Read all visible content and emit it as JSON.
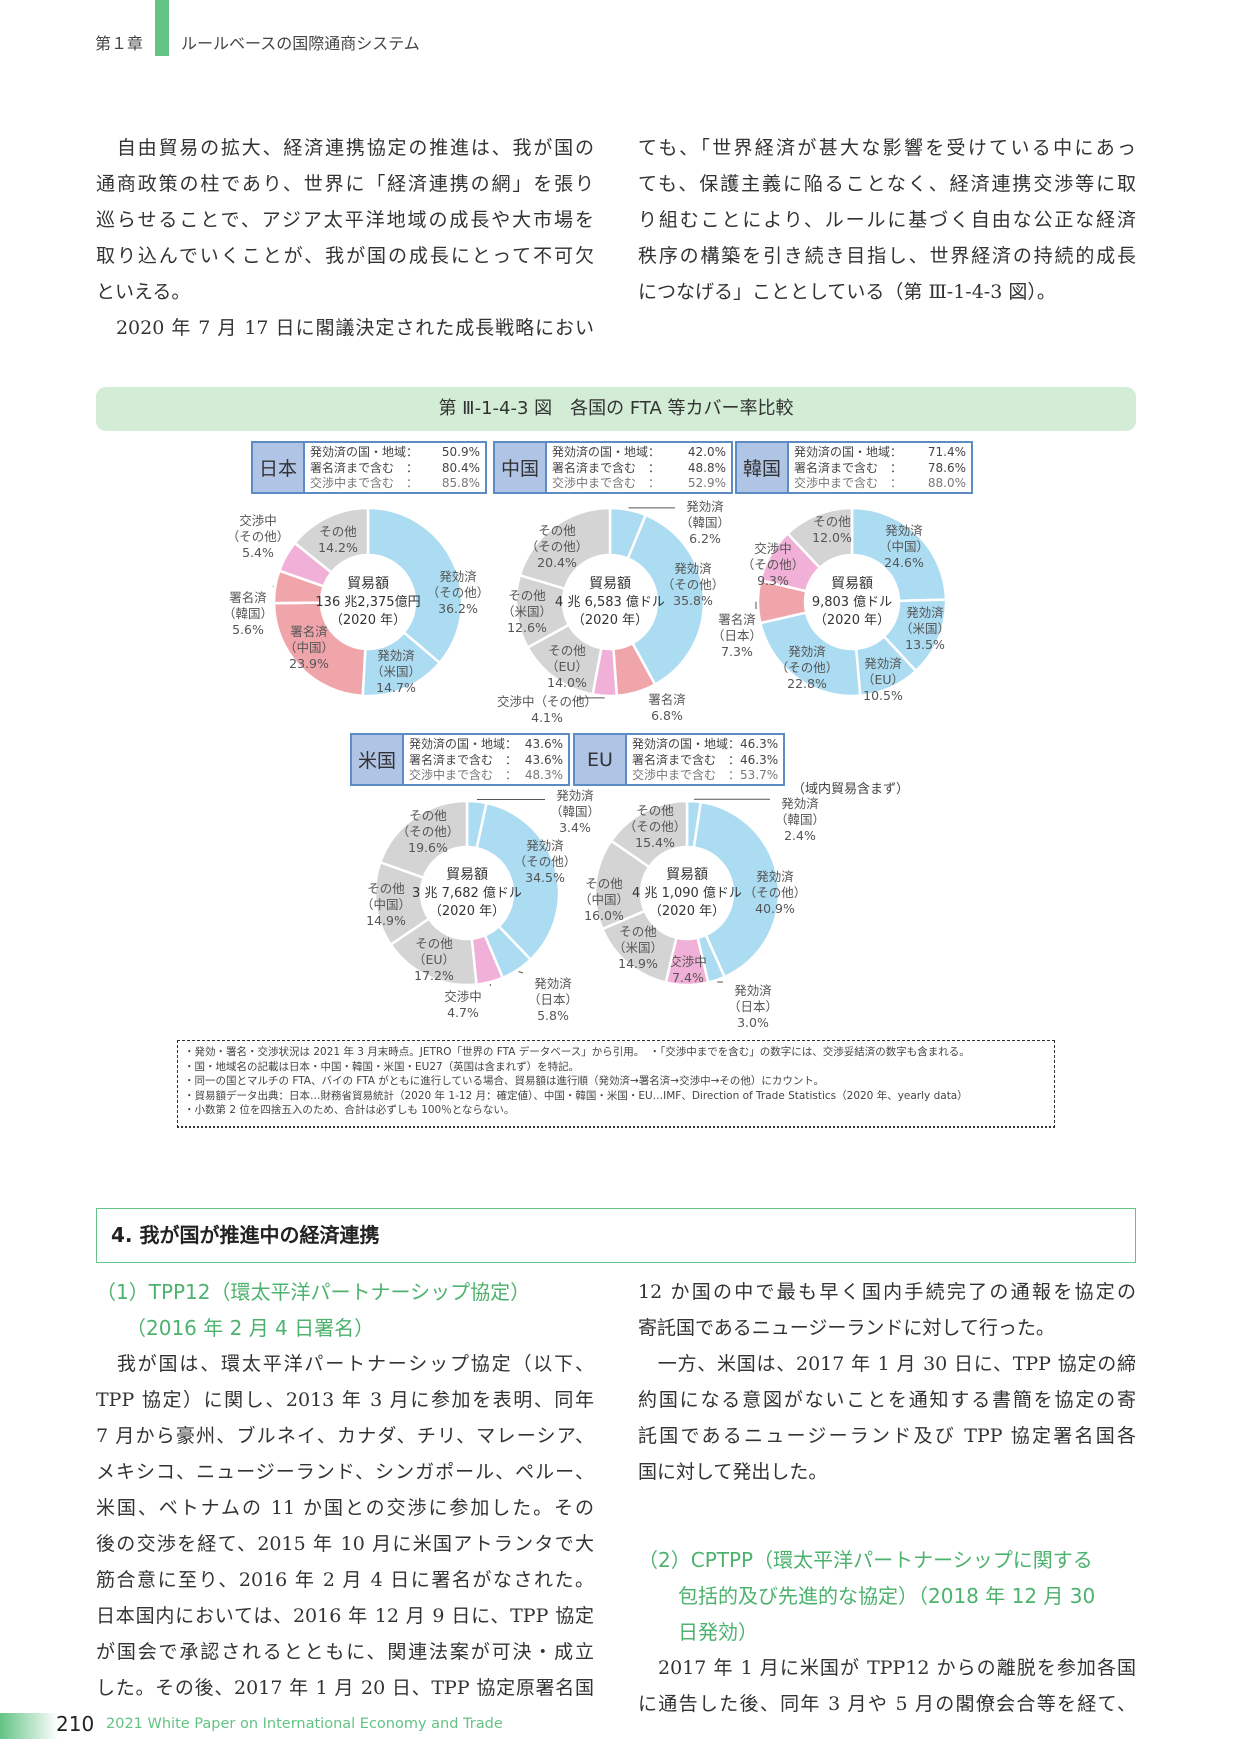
{
  "header": {
    "chapter": "第１章",
    "title": "ルールベースの国際通商システム"
  },
  "intro": {
    "left": [
      {
        "lines": [
          "　自由貿易の拡大、経済連携協定の推進は、我が国の",
          "通商政策の柱であり、世界に「経済連携の網」を張り",
          "巡らせることで、アジア太平洋地域の成長や大市場を",
          "取り込んでいくことが、我が国の成長にとって不可欠",
          "といえる。"
        ]
      },
      {
        "lines": [
          "　2020 年 7 月 17 日に閣議決定された成長戦略におい"
        ]
      }
    ],
    "right": [
      {
        "lines": [
          "ても、「世界経済が甚大な影響を受けている中にあっ",
          "ても、保護主義に陥ることなく、経済連携交渉等に取",
          "り組むことにより、ルールに基づく自由な公正な経済",
          "秩序の構築を引き続き目指し、世界経済の持続的成長",
          "につなげる」こととしている（第 Ⅲ-1-4-3 図）。"
        ]
      }
    ]
  },
  "figure": {
    "title": "第 Ⅲ-1-4-3 図　各国の FTA 等カバー率比較",
    "stat_labels": [
      "発効済の国・地域：",
      "署名済まで含む　：",
      "交渉中まで含む　："
    ],
    "eu_note": "（域内貿易含まず）",
    "colors": {
      "発効済": "#acdcf2",
      "署名済": "#f0a5ab",
      "交渉中": "#f1b0d7",
      "その他": "#d4d4d4"
    },
    "notes": [
      "・発効・署名・交渉状況は 2021 年 3 月末時点。JETRO「世界の FTA データベース」から引用。　・「交渉中までを含む」の数字には、交渉妥結済の数字も含まれる。",
      "・国・地域名の記載は日本・中国・韓国・米国・EU27（英国は含まれず）を特記。",
      "・同一の国とマルチの FTA、バイの FTA がともに進行している場合、貿易額は進行順（発効済→署名済→交渉中→その他）にカウント。",
      "・貿易額データ出典：日本…財務省貿易統計（2020 年 1-12 月：確定値）、中国・韓国・米国・EU…IMF、Direction of Trade Statistics（2020 年、yearly data）",
      "・小数第 2 位を四捨五入のため、合計は必ずしも 100％とならない。"
    ]
  },
  "chart_data": [
    {
      "type": "pie",
      "country": "日本",
      "stats": [
        "50.9%",
        "80.4%",
        "85.8%"
      ],
      "center": [
        "貿易額",
        "136 兆2,375億円",
        "（2020 年）"
      ],
      "slices": [
        {
          "category": "発効済",
          "partner": "（その他）",
          "value": 36.2
        },
        {
          "category": "発効済",
          "partner": "（米国）",
          "value": 14.7
        },
        {
          "category": "署名済",
          "partner": "（中国）",
          "value": 23.9
        },
        {
          "category": "署名済",
          "partner": "（韓国）",
          "value": 5.6
        },
        {
          "category": "交渉中",
          "partner": "（その他）",
          "value": 5.4
        },
        {
          "category": "その他",
          "partner": "",
          "value": 14.2
        }
      ]
    },
    {
      "type": "pie",
      "country": "中国",
      "stats": [
        "42.0%",
        "48.8%",
        "52.9%"
      ],
      "center": [
        "貿易額",
        "4 兆 6,583 億ドル",
        "（2020 年）"
      ],
      "slices": [
        {
          "category": "発効済",
          "partner": "（韓国）",
          "value": 6.2
        },
        {
          "category": "発効済",
          "partner": "（その他）",
          "value": 35.8
        },
        {
          "category": "署名済",
          "partner": "",
          "value": 6.8
        },
        {
          "category": "交渉中",
          "partner": "（その他）",
          "value": 4.1
        },
        {
          "category": "その他",
          "partner": "（EU）",
          "value": 14.0
        },
        {
          "category": "その他",
          "partner": "（米国）",
          "value": 12.6
        },
        {
          "category": "その他",
          "partner": "（その他）",
          "value": 20.4
        }
      ]
    },
    {
      "type": "pie",
      "country": "韓国",
      "stats": [
        "71.4%",
        "78.6%",
        "88.0%"
      ],
      "center": [
        "貿易額",
        "9,803 億ドル",
        "（2020 年）"
      ],
      "slices": [
        {
          "category": "発効済",
          "partner": "（中国）",
          "value": 24.6
        },
        {
          "category": "発効済",
          "partner": "（米国）",
          "value": 13.5
        },
        {
          "category": "発効済",
          "partner": "（EU）",
          "value": 10.5
        },
        {
          "category": "発効済",
          "partner": "（その他）",
          "value": 22.8
        },
        {
          "category": "署名済",
          "partner": "（日本）",
          "value": 7.3
        },
        {
          "category": "交渉中",
          "partner": "（その他）",
          "value": 9.3
        },
        {
          "category": "その他",
          "partner": "",
          "value": 12.0
        }
      ]
    },
    {
      "type": "pie",
      "country": "米国",
      "stats": [
        "43.6%",
        "43.6%",
        "48.3%"
      ],
      "center": [
        "貿易額",
        "3 兆 7,682 億ドル",
        "（2020 年）"
      ],
      "slices": [
        {
          "category": "発効済",
          "partner": "（韓国）",
          "value": 3.4
        },
        {
          "category": "発効済",
          "partner": "（その他）",
          "value": 34.5
        },
        {
          "category": "発効済",
          "partner": "（日本）",
          "value": 5.8
        },
        {
          "category": "交渉中",
          "partner": "",
          "value": 4.7
        },
        {
          "category": "その他",
          "partner": "（EU）",
          "value": 17.2
        },
        {
          "category": "その他",
          "partner": "（中国）",
          "value": 14.9
        },
        {
          "category": "その他",
          "partner": "（その他）",
          "value": 19.6
        }
      ]
    },
    {
      "type": "pie",
      "country": "EU",
      "stats": [
        "46.3%",
        "46.3%",
        "53.7%"
      ],
      "center": [
        "貿易額",
        "4 兆 1,090 億ドル",
        "（2020 年）"
      ],
      "slices": [
        {
          "category": "発効済",
          "partner": "（韓国）",
          "value": 2.4
        },
        {
          "category": "発効済",
          "partner": "（その他）",
          "value": 40.9
        },
        {
          "category": "発効済",
          "partner": "（日本）",
          "value": 3.0
        },
        {
          "category": "交渉中",
          "partner": "",
          "value": 7.4
        },
        {
          "category": "その他",
          "partner": "（米国）",
          "value": 14.9
        },
        {
          "category": "その他",
          "partner": "（中国）",
          "value": 16.0
        },
        {
          "category": "その他",
          "partner": "（その他）",
          "value": 15.4
        }
      ]
    }
  ],
  "section4": {
    "title": "4.  我が国が推進中の経済連携",
    "sub1": {
      "heading": [
        "（1）TPP12（環太平洋パートナーシップ協定）",
        "　　（2016 年 2 月 4 日署名）"
      ],
      "left": [
        "　我が国は、環太平洋パートナーシップ協定（以下、",
        "TPP 協定）に関し、2013 年 3 月に参加を表明、同年",
        "7 月から豪州、ブルネイ、カナダ、チリ、マレーシア、",
        "メキシコ、ニュージーランド、シンガポール、ペルー、",
        "米国、ベトナムの 11 か国との交渉に参加した。その",
        "後の交渉を経て、2015 年 10 月に米国アトランタで大",
        "筋合意に至り、2016 年 2 月 4 日に署名がなされた。",
        "日本国内においては、2016 年 12 月 9 日に、TPP 協定",
        "が国会で承認されるとともに、関連法案が可決・成立",
        "した。その後、2017 年 1 月 20 日、TPP 協定原署名国"
      ],
      "right": [
        {
          "lines": [
            "12 か国の中で最も早く国内手続完了の通報を協定の",
            "寄託国であるニュージーランドに対して行った。"
          ]
        },
        {
          "lines": [
            "　一方、米国は、2017 年 1 月 30 日に、TPP 協定の締",
            "約国になる意図がないことを通知する書簡を協定の寄",
            "託国であるニュージーランド及び TPP 協定署名国各",
            "国に対して発出した。"
          ]
        }
      ]
    },
    "sub2": {
      "heading": [
        "（2）CPTPP（環太平洋パートナーシップに関する",
        "　　包括的及び先進的な協定）（2018 年 12 月 30",
        "　　日発効）"
      ],
      "lines": [
        "　2017 年 1 月に米国が TPP12 からの離脱を参加各国",
        "に通告した後、同年 3 月や 5 月の閣僚会合等を経て、"
      ]
    }
  },
  "footer": {
    "page": "210",
    "title": "2021 White Paper on International Economy and Trade"
  }
}
